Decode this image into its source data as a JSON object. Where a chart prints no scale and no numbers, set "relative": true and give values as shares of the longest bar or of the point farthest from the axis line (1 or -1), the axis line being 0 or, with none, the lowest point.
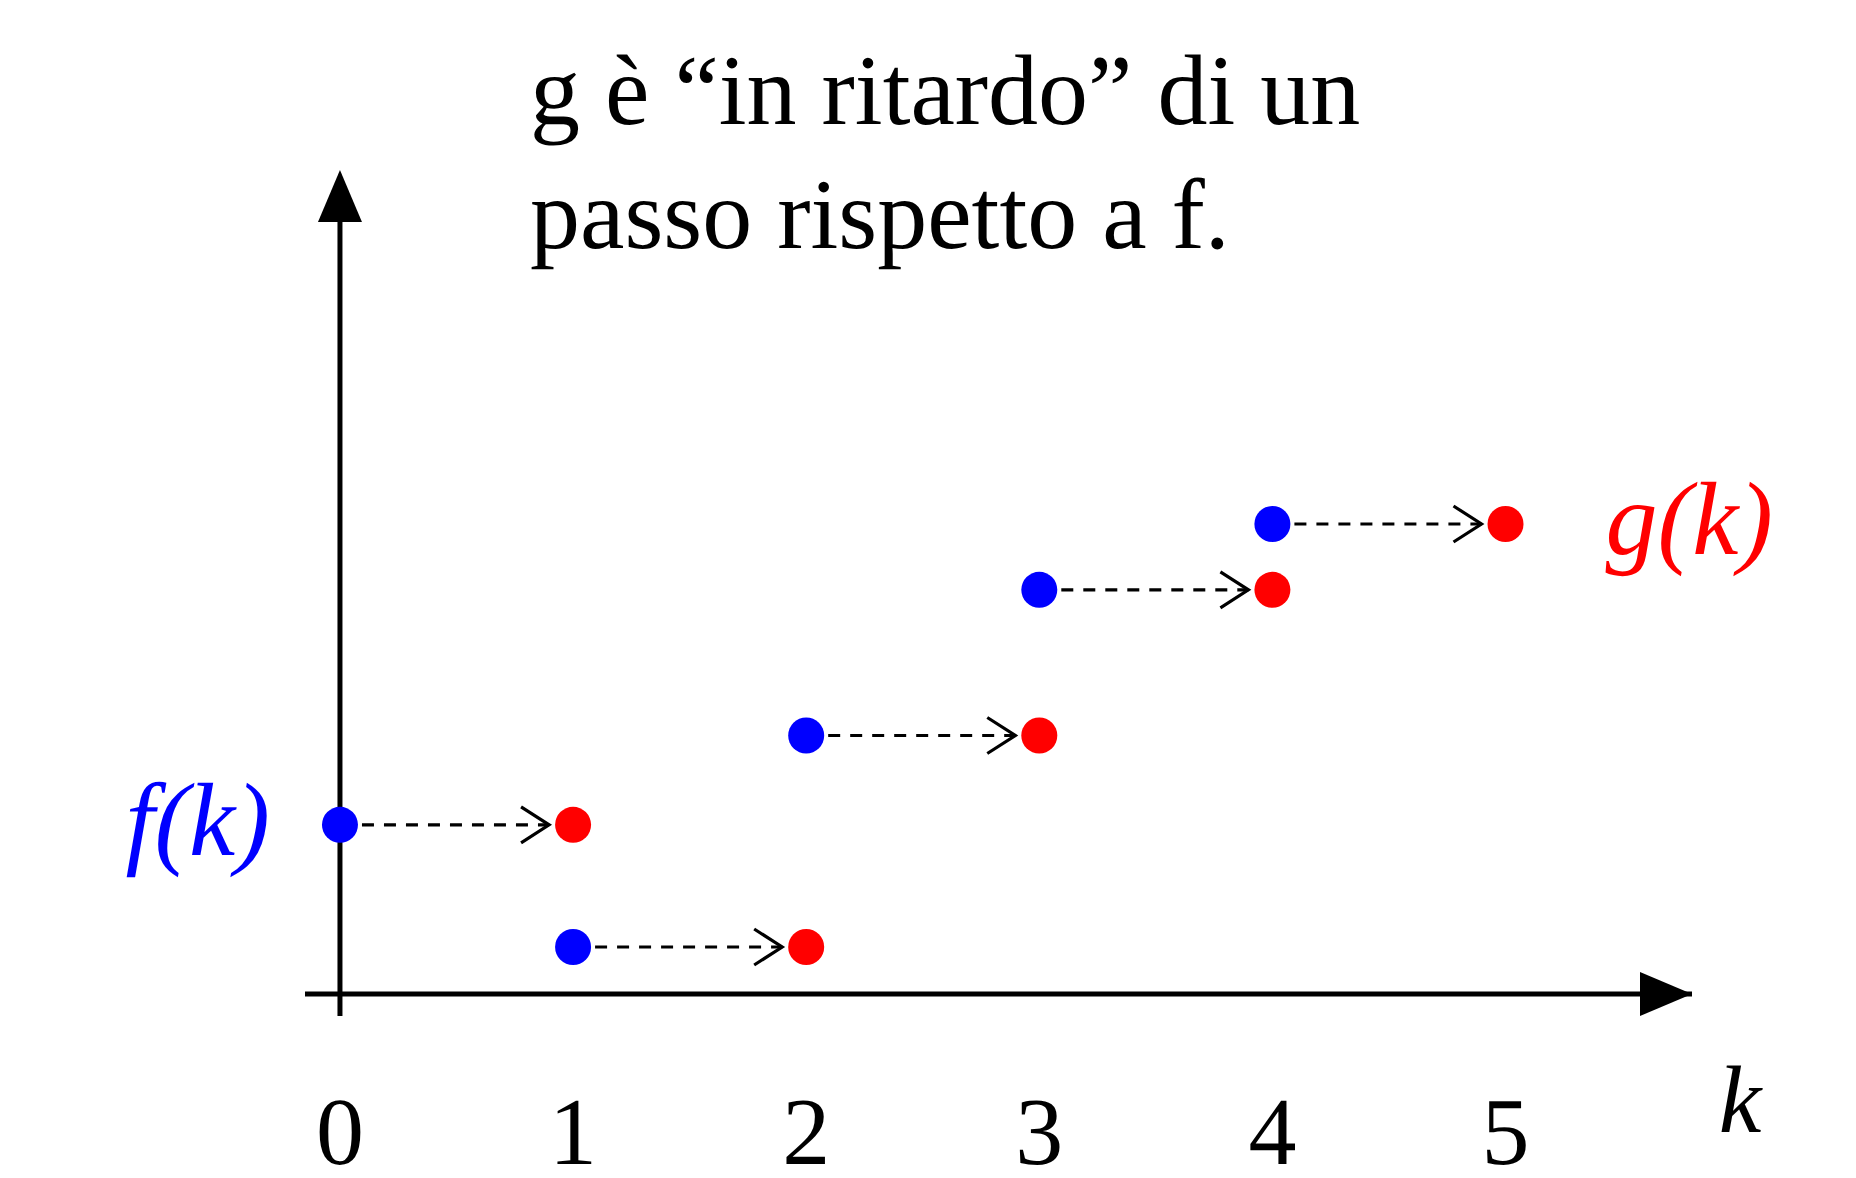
{
  "chart_data": {
    "type": "scatter",
    "title": "g è “in ritardo” di un passo rispetto a f.",
    "xlabel": "k",
    "relative": true,
    "marker": "circle",
    "xlim": [
      -0.15,
      5.8
    ],
    "xticks": [
      0,
      1,
      2,
      3,
      4,
      5
    ],
    "series": [
      {
        "name": "f(k)",
        "color": "#0000ff",
        "x": [
          0,
          1,
          2,
          3,
          4
        ],
        "values": [
          0.36,
          0.1,
          0.55,
          0.86,
          1
        ]
      },
      {
        "name": "g(k)",
        "color": "#ff0000",
        "x": [
          1,
          2,
          3,
          4,
          5
        ],
        "values": [
          0.36,
          0.1,
          0.55,
          0.86,
          1
        ]
      }
    ]
  }
}
